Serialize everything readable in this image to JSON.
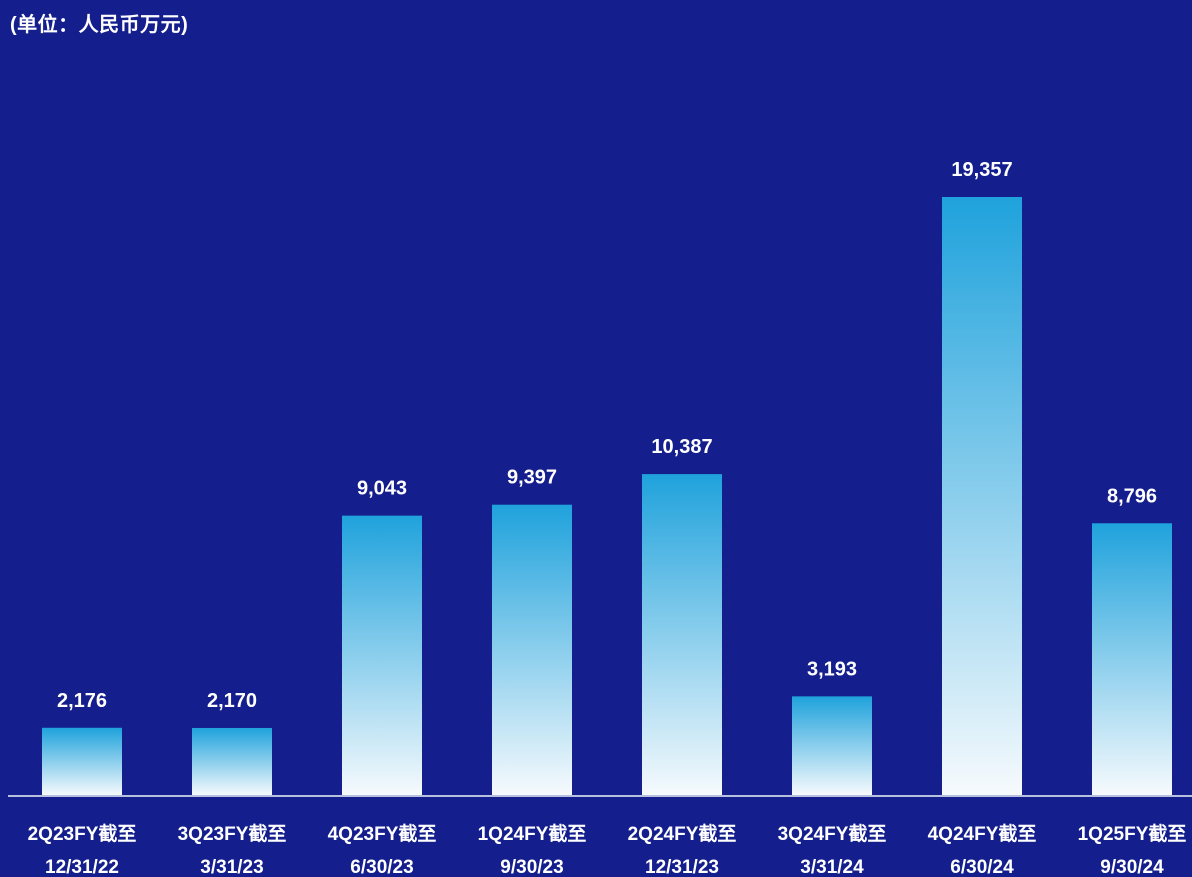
{
  "chart_data": {
    "type": "bar",
    "subtitle": "(单位：人民币万元)",
    "categories": [
      [
        "2Q23FY截至",
        "12/31/22"
      ],
      [
        "3Q23FY截至",
        "3/31/23"
      ],
      [
        "4Q23FY截至",
        "6/30/23"
      ],
      [
        "1Q24FY截至",
        "9/30/23"
      ],
      [
        "2Q24FY截至",
        "12/31/23"
      ],
      [
        "3Q24FY截至",
        "3/31/24"
      ],
      [
        "4Q24FY截至",
        "6/30/24"
      ],
      [
        "1Q25FY截至",
        "9/30/24"
      ]
    ],
    "values": [
      2176,
      2170,
      9043,
      9397,
      10387,
      3193,
      19357,
      8796
    ],
    "value_labels": [
      "2,176",
      "2,170",
      "9,043",
      "9,397",
      "10,387",
      "3,193",
      "19,357",
      "8,796"
    ],
    "ylim": [
      0,
      19357
    ],
    "grid": false,
    "legend": "none",
    "colors": {
      "background": "#141e8c",
      "bar_top": "#1fa2dc",
      "bar_bottom": "#f6fafd",
      "axis": "#b8c0e0",
      "text": "#ffffff"
    }
  }
}
